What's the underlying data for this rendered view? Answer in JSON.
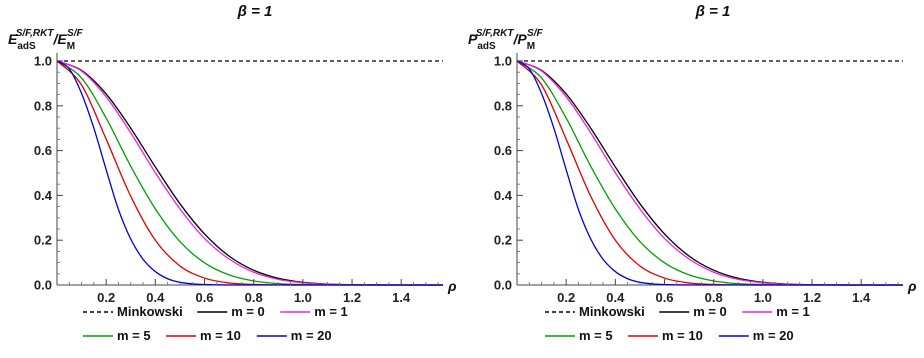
{
  "chart_data": [
    {
      "type": "line",
      "title": "β = 1",
      "ylabel": {
        "main_left": "E",
        "sub_left": "adS",
        "sup_left": "S/F,RKT",
        "slash": "/",
        "main_right": "E",
        "sub_right": "M",
        "sup_right": "S/F"
      },
      "xlabel": "ρ",
      "xlim": [
        0,
        1.57
      ],
      "ylim": [
        0,
        1.0
      ],
      "xticks": [
        "0.2",
        "0.4",
        "0.6",
        "0.8",
        "1.0",
        "1.2",
        "1.4"
      ],
      "yticks": [
        "0.0",
        "0.2",
        "0.4",
        "0.6",
        "0.8",
        "1.0"
      ],
      "series": [
        {
          "name": "Minkowski",
          "color": "#000000",
          "dashed": true,
          "x": [
            0,
            1.57
          ],
          "y": [
            1.0,
            1.0
          ]
        },
        {
          "name": "m = 0",
          "color": "#000000",
          "x": [
            0,
            0.1,
            0.2,
            0.3,
            0.4,
            0.5,
            0.6,
            0.7,
            0.8,
            0.9,
            1.0,
            1.1,
            1.2,
            1.3,
            1.4,
            1.5,
            1.57
          ],
          "y": [
            1.0,
            0.958,
            0.853,
            0.7,
            0.527,
            0.363,
            0.228,
            0.129,
            0.066,
            0.03,
            0.012,
            0.004,
            0.0013,
            0.0003,
            0.0001,
            0.0,
            0.0
          ]
        },
        {
          "name": "m = 1",
          "color": "#ee22dd",
          "x": [
            0,
            0.1,
            0.2,
            0.3,
            0.4,
            0.5,
            0.6,
            0.7,
            0.8,
            0.9,
            1.0,
            1.1,
            1.2,
            1.3,
            1.4,
            1.5,
            1.57
          ],
          "y": [
            1.0,
            0.955,
            0.84,
            0.679,
            0.501,
            0.34,
            0.208,
            0.116,
            0.057,
            0.025,
            0.01,
            0.003,
            0.001,
            0.0002,
            0.0,
            0.0,
            0.0
          ]
        },
        {
          "name": "m = 5",
          "color": "#00a000",
          "x": [
            0,
            0.1,
            0.2,
            0.3,
            0.4,
            0.5,
            0.6,
            0.7,
            0.8,
            0.9,
            1.0,
            1.1,
            1.2,
            1.3,
            1.4,
            1.5,
            1.57
          ],
          "y": [
            1.0,
            0.924,
            0.745,
            0.53,
            0.34,
            0.194,
            0.099,
            0.045,
            0.018,
            0.006,
            0.002,
            0.0006,
            0.0,
            0.0,
            0.0,
            0.0,
            0.0
          ]
        },
        {
          "name": "m = 10",
          "color": "#e00000",
          "x": [
            0,
            0.1,
            0.2,
            0.3,
            0.4,
            0.5,
            0.6,
            0.7,
            0.8,
            0.9,
            1.0,
            1.1,
            1.2,
            1.3,
            1.4,
            1.5,
            1.57
          ],
          "y": [
            1.0,
            0.893,
            0.651,
            0.396,
            0.2,
            0.085,
            0.031,
            0.009,
            0.0025,
            0.0006,
            0.0001,
            0.0,
            0.0,
            0.0,
            0.0,
            0.0,
            0.0
          ]
        },
        {
          "name": "m = 20",
          "color": "#0000dd",
          "x": [
            0,
            0.05,
            0.1,
            0.15,
            0.2,
            0.25,
            0.3,
            0.35,
            0.4,
            0.45,
            0.5,
            0.55,
            0.6,
            0.7,
            0.8,
            0.9,
            1.0,
            1.57
          ],
          "y": [
            1.0,
            0.965,
            0.855,
            0.7,
            0.515,
            0.337,
            0.205,
            0.115,
            0.06,
            0.028,
            0.012,
            0.005,
            0.002,
            0.0003,
            0.0,
            0.0,
            0.0,
            0.0
          ]
        }
      ]
    },
    {
      "type": "line",
      "title": "β = 1",
      "ylabel": {
        "main_left": "P",
        "sub_left": "adS",
        "sup_left": "S/F,RKT",
        "slash": "/",
        "main_right": "P",
        "sub_right": "M",
        "sup_right": "S/F"
      },
      "xlabel": "ρ",
      "xlim": [
        0,
        1.57
      ],
      "ylim": [
        0,
        1.0
      ],
      "xticks": [
        "0.2",
        "0.4",
        "0.6",
        "0.8",
        "1.0",
        "1.2",
        "1.4"
      ],
      "yticks": [
        "0.0",
        "0.2",
        "0.4",
        "0.6",
        "0.8",
        "1.0"
      ],
      "series": [
        {
          "name": "Minkowski",
          "color": "#000000",
          "dashed": true,
          "x": [
            0,
            1.57
          ],
          "y": [
            1.0,
            1.0
          ]
        },
        {
          "name": "m = 0",
          "color": "#000000",
          "x": [
            0,
            0.1,
            0.2,
            0.3,
            0.4,
            0.5,
            0.6,
            0.7,
            0.8,
            0.9,
            1.0,
            1.1,
            1.2,
            1.3,
            1.4,
            1.5,
            1.57
          ],
          "y": [
            1.0,
            0.958,
            0.853,
            0.7,
            0.527,
            0.363,
            0.228,
            0.129,
            0.066,
            0.03,
            0.012,
            0.004,
            0.0013,
            0.0003,
            0.0001,
            0.0,
            0.0
          ]
        },
        {
          "name": "m = 1",
          "color": "#ee22dd",
          "x": [
            0,
            0.1,
            0.2,
            0.3,
            0.4,
            0.5,
            0.6,
            0.7,
            0.8,
            0.9,
            1.0,
            1.1,
            1.2,
            1.3,
            1.4,
            1.5,
            1.57
          ],
          "y": [
            1.0,
            0.955,
            0.84,
            0.679,
            0.501,
            0.34,
            0.208,
            0.116,
            0.057,
            0.025,
            0.01,
            0.003,
            0.001,
            0.0002,
            0.0,
            0.0,
            0.0
          ]
        },
        {
          "name": "m = 5",
          "color": "#00a000",
          "x": [
            0,
            0.1,
            0.2,
            0.3,
            0.4,
            0.5,
            0.6,
            0.7,
            0.8,
            0.9,
            1.0,
            1.1,
            1.2,
            1.3,
            1.4,
            1.5,
            1.57
          ],
          "y": [
            1.0,
            0.924,
            0.745,
            0.53,
            0.34,
            0.194,
            0.099,
            0.045,
            0.018,
            0.006,
            0.002,
            0.0006,
            0.0,
            0.0,
            0.0,
            0.0,
            0.0
          ]
        },
        {
          "name": "m = 10",
          "color": "#e00000",
          "x": [
            0,
            0.1,
            0.2,
            0.3,
            0.4,
            0.5,
            0.6,
            0.7,
            0.8,
            0.9,
            1.0,
            1.1,
            1.2,
            1.3,
            1.4,
            1.5,
            1.57
          ],
          "y": [
            1.0,
            0.893,
            0.651,
            0.396,
            0.2,
            0.085,
            0.031,
            0.009,
            0.0025,
            0.0006,
            0.0001,
            0.0,
            0.0,
            0.0,
            0.0,
            0.0,
            0.0
          ]
        },
        {
          "name": "m = 20",
          "color": "#0000dd",
          "x": [
            0,
            0.05,
            0.1,
            0.15,
            0.2,
            0.25,
            0.3,
            0.35,
            0.4,
            0.45,
            0.5,
            0.55,
            0.6,
            0.7,
            0.8,
            0.9,
            1.0,
            1.57
          ],
          "y": [
            1.0,
            0.965,
            0.855,
            0.7,
            0.515,
            0.337,
            0.205,
            0.115,
            0.06,
            0.028,
            0.012,
            0.005,
            0.002,
            0.0003,
            0.0,
            0.0,
            0.0,
            0.0
          ]
        }
      ]
    }
  ]
}
